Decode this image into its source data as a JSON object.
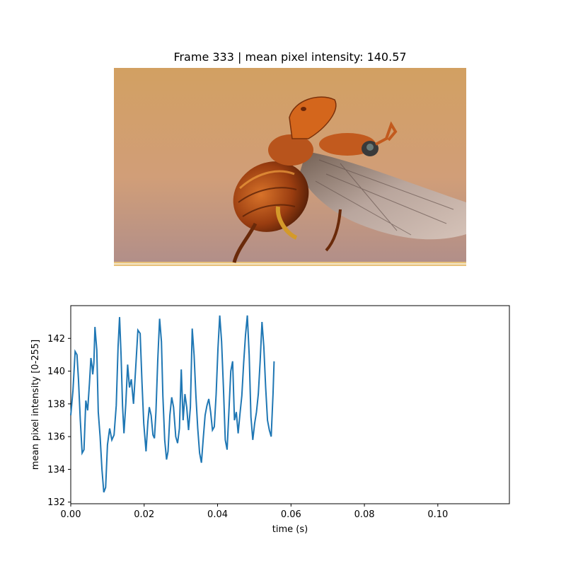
{
  "frame_title": "Frame 333 | mean pixel intensity: 140.57",
  "image_subject": "flying-beetle-photo",
  "colors": {
    "line": "#1f77b4",
    "background_top": "#d2a062",
    "background_bottom": "#b08e8a"
  },
  "chart_data": {
    "type": "line",
    "title": "",
    "xlabel": "time (s)",
    "ylabel": "mean pixel intensity [0-255]",
    "xlim": [
      0,
      0.1195
    ],
    "ylim": [
      131.9,
      144.0
    ],
    "xticks": [
      "0.00",
      "0.02",
      "0.04",
      "0.06",
      "0.08",
      "0.10"
    ],
    "xtick_values": [
      0,
      0.02,
      0.04,
      0.06,
      0.08,
      0.1
    ],
    "yticks": [
      "132",
      "134",
      "136",
      "138",
      "140",
      "142"
    ],
    "ytick_values": [
      132,
      134,
      136,
      138,
      140,
      142
    ],
    "grid": false,
    "series": [
      {
        "x": [
          0.0,
          0.0006,
          0.0012,
          0.0017,
          0.0021,
          0.0026,
          0.0031,
          0.0036,
          0.0041,
          0.0046,
          0.0051,
          0.0055,
          0.0058,
          0.006,
          0.0063,
          0.0066,
          0.0071,
          0.0075,
          0.008,
          0.0085,
          0.009,
          0.0095,
          0.01,
          0.0106,
          0.0112,
          0.0118,
          0.0124,
          0.0129,
          0.0133,
          0.0137,
          0.0141,
          0.0145,
          0.015,
          0.0155,
          0.016,
          0.0165,
          0.0171,
          0.0177,
          0.0183,
          0.0189,
          0.0194,
          0.0199,
          0.0205,
          0.021,
          0.0214,
          0.0219,
          0.0224,
          0.0228,
          0.0232,
          0.0237,
          0.0242,
          0.0247,
          0.0251,
          0.0256,
          0.0261,
          0.0265,
          0.027,
          0.0275,
          0.028,
          0.0286,
          0.0291,
          0.0296,
          0.0301,
          0.0306,
          0.0311,
          0.0316,
          0.0321,
          0.0326,
          0.0331,
          0.0336,
          0.0341,
          0.0346,
          0.0351,
          0.0356,
          0.0361,
          0.0366,
          0.0371,
          0.0376,
          0.0381,
          0.0386,
          0.0391,
          0.0396,
          0.0401,
          0.0406,
          0.0411,
          0.0416,
          0.0421,
          0.0426,
          0.0431,
          0.0436,
          0.0441,
          0.0446,
          0.0451,
          0.0456,
          0.0461,
          0.0466,
          0.0471,
          0.0476,
          0.0481,
          0.0486,
          0.0491,
          0.0496,
          0.0501,
          0.0506,
          0.0511,
          0.0516,
          0.0521,
          0.0526,
          0.0531,
          0.0536,
          0.0541,
          0.0546,
          0.0551,
          0.0554
        ],
        "y": [
          137.3,
          138.8,
          141.2,
          141.0,
          139.5,
          137.0,
          135.0,
          135.2,
          138.2,
          137.6,
          139.3,
          140.8,
          140.3,
          139.8,
          140.5,
          142.7,
          141.3,
          137.5,
          136.0,
          134.0,
          132.6,
          132.9,
          135.5,
          136.5,
          135.8,
          136.1,
          137.9,
          141.5,
          143.3,
          141.0,
          137.9,
          136.2,
          138.0,
          140.4,
          139.0,
          139.5,
          138.0,
          140.2,
          142.5,
          142.3,
          139.3,
          136.8,
          135.1,
          136.9,
          137.8,
          137.3,
          136.1,
          135.9,
          137.5,
          140.7,
          143.2,
          141.8,
          138.5,
          135.8,
          134.6,
          135.1,
          137.3,
          138.4,
          137.8,
          136.0,
          135.6,
          136.5,
          140.1,
          137.0,
          138.6,
          137.8,
          136.4,
          137.8,
          142.6,
          141.0,
          138.5,
          136.5,
          135.0,
          134.4,
          135.9,
          137.3,
          137.9,
          138.3,
          137.5,
          136.4,
          136.6,
          138.6,
          141.4,
          143.4,
          141.8,
          139.0,
          135.8,
          135.2,
          137.6,
          140.0,
          140.6,
          137.0,
          137.5,
          136.2,
          137.4,
          138.5,
          140.5,
          142.2,
          143.4,
          141.0,
          137.2,
          135.8,
          136.8,
          137.5,
          138.6,
          140.6,
          143.0,
          141.5,
          139.0,
          137.0,
          136.4,
          136.0,
          138.6,
          140.6
        ]
      }
    ]
  }
}
